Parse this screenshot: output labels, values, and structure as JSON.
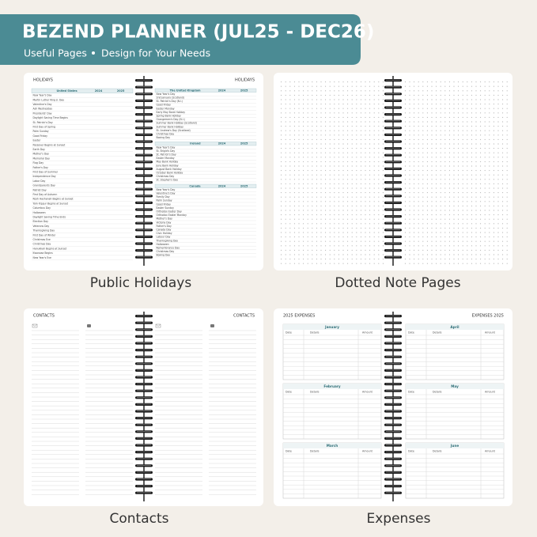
{
  "header": {
    "title": "BEZEND PLANNER (JUL25 - DEC26)",
    "subtitle_left": "Useful Pages",
    "subtitle_right": "Design for Your Needs"
  },
  "holidays": {
    "label": "Public Holidays",
    "left_heading": "HOLIDAYS",
    "right_heading": "HOLIDAYS",
    "columns": [
      "2024",
      "2025"
    ],
    "tables": [
      {
        "country": "United States",
        "page": "left",
        "holidays": [
          "New Year's Day",
          "Martin Luther King Jr. Day",
          "Valentine's Day",
          "Ash Wednesday",
          "Presidents' Day",
          "Daylight Saving Time Begins",
          "St. Patrick's Day",
          "First Day of Spring",
          "Palm Sunday",
          "Good Friday",
          "Easter",
          "Passover Begins at Sunset",
          "Earth Day",
          "Mother's Day",
          "Memorial Day",
          "Flag Day",
          "Father's Day",
          "First Day of Summer",
          "Independence Day",
          "Labor Day",
          "Grandparents Day",
          "Patriot Day",
          "First Day of Autumn",
          "Rosh Hashanah Begins at Sunset",
          "Yom Kippur Begins at Sunset",
          "Columbus Day",
          "Halloween",
          "Daylight Saving Time Ends",
          "Election Day",
          "Veterans Day",
          "Thanksgiving Day",
          "First Day of Winter",
          "Christmas Eve",
          "Christmas Day",
          "Hanukkah Begins at Sunset",
          "Kwanzaa Begins",
          "New Year's Eve"
        ]
      },
      {
        "country": "The United Kingdom",
        "page": "right",
        "holidays": [
          "New Year's Day",
          "2nd January (Scotland)",
          "St. Patrick's Day (N.I.)",
          "Good Friday",
          "Easter Monday",
          "Early May Bank Holiday",
          "Spring Bank Holiday",
          "Orangemen's Day (N.I.)",
          "Summer Bank Holiday (Scotland)",
          "Summer Bank Holiday",
          "St. Andrew's Day (Scotland)",
          "Christmas Day",
          "Boxing Day"
        ]
      },
      {
        "country": "Ireland",
        "page": "right",
        "holidays": [
          "New Year's Day",
          "St. Brigid's Day",
          "St. Patrick's Day",
          "Easter Monday",
          "May Bank Holiday",
          "June Bank Holiday",
          "August Bank Holiday",
          "October Bank Holiday",
          "Christmas Day",
          "St. Stephen's Day"
        ]
      },
      {
        "country": "Canada",
        "page": "right",
        "holidays": [
          "New Year's Day",
          "Valentine's Day",
          "Family Day",
          "Palm Sunday",
          "Good Friday",
          "Easter Sunday",
          "Orthodox Easter Day",
          "Orthodox Easter Monday",
          "Mother's Day",
          "Victoria Day",
          "Father's Day",
          "Canada Day",
          "Civic Holiday",
          "Labour Day",
          "Thanksgiving Day",
          "Halloween",
          "Remembrance Day",
          "Christmas Day",
          "Boxing Day"
        ]
      }
    ]
  },
  "notes": {
    "label": "Dotted Note Pages"
  },
  "contacts": {
    "label": "Contacts",
    "left_heading": "CONTACTS",
    "right_heading": "CONTACTS"
  },
  "expenses": {
    "label": "Expenses",
    "left_heading": "2025 EXPENSES",
    "right_heading": "EXPENSES 2025",
    "columns": [
      "Date",
      "Details",
      "Amount"
    ],
    "months": [
      "January",
      "February",
      "March",
      "April",
      "May",
      "June"
    ]
  }
}
